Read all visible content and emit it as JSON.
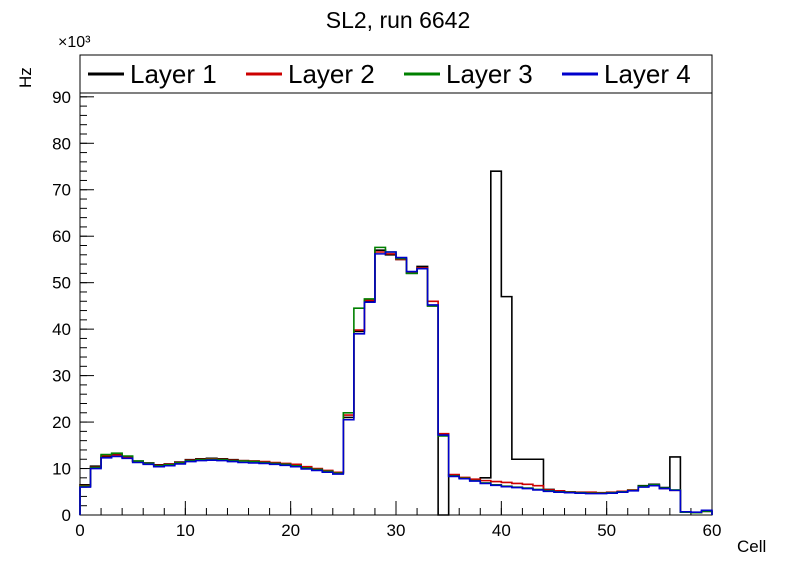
{
  "chart_data": {
    "type": "line",
    "subtype": "step-histogram",
    "title": "SL2, run 6642",
    "xlabel": "Cell",
    "ylabel": "Hz",
    "y_multiplier": "×10³",
    "units": "×10³ Hz",
    "xlim": [
      0,
      60
    ],
    "ylim": [
      0,
      99
    ],
    "x_major_step": 10,
    "x_minor_step": 2,
    "y_major_step": 10,
    "y_minor_step": 2,
    "bin_width": 1,
    "grid": false,
    "legend_position": "top",
    "series": [
      {
        "name": "Layer 1",
        "color": "#000000",
        "values": [
          6.5,
          10.5,
          12.5,
          13.0,
          12.5,
          11.6,
          11.2,
          10.8,
          11.0,
          11.4,
          11.9,
          12.1,
          12.2,
          12.1,
          11.9,
          11.7,
          11.6,
          11.4,
          11.2,
          11.0,
          10.7,
          10.2,
          9.9,
          9.4,
          9.1,
          21.0,
          39.5,
          46.0,
          57.0,
          56.0,
          55.0,
          52.0,
          53.5,
          45.0,
          0.0,
          8.6,
          8.0,
          7.6,
          8.0,
          74.0,
          47.0,
          12.0,
          12.0,
          12.0,
          5.5,
          5.1,
          4.9,
          4.8,
          4.7,
          4.7,
          4.8,
          5.0,
          5.3,
          6.3,
          6.6,
          5.9,
          12.5,
          0.6,
          0.5,
          0.8
        ]
      },
      {
        "name": "Layer 2",
        "color": "#cc0000",
        "values": [
          6.3,
          10.3,
          12.8,
          12.9,
          12.4,
          11.5,
          11.1,
          10.7,
          10.9,
          11.3,
          11.8,
          12.0,
          12.1,
          12.0,
          11.8,
          11.7,
          11.6,
          11.5,
          11.3,
          11.1,
          10.9,
          10.4,
          10.0,
          9.6,
          9.2,
          21.5,
          39.8,
          46.2,
          56.6,
          56.2,
          55.0,
          52.2,
          53.2,
          46.0,
          17.5,
          8.7,
          8.1,
          7.7,
          7.4,
          7.2,
          7.0,
          6.8,
          6.6,
          6.3,
          5.4,
          5.2,
          5.0,
          4.9,
          4.9,
          4.8,
          4.9,
          5.1,
          5.4,
          6.1,
          6.3,
          5.7,
          5.3,
          0.6,
          0.5,
          0.8
        ]
      },
      {
        "name": "Layer 3",
        "color": "#008000",
        "values": [
          6.2,
          10.2,
          13.0,
          13.3,
          12.7,
          11.6,
          11.1,
          10.6,
          10.8,
          11.2,
          11.7,
          11.9,
          12.0,
          11.9,
          11.7,
          11.6,
          11.5,
          11.3,
          11.1,
          10.9,
          10.6,
          10.1,
          9.8,
          9.4,
          9.0,
          22.0,
          44.5,
          46.5,
          57.6,
          56.6,
          55.2,
          52.0,
          53.0,
          45.0,
          17.0,
          8.4,
          7.9,
          7.4,
          6.9,
          6.5,
          6.2,
          6.0,
          5.8,
          5.5,
          5.2,
          5.0,
          4.9,
          4.8,
          4.7,
          4.7,
          4.8,
          5.0,
          5.3,
          6.2,
          6.5,
          5.8,
          5.4,
          0.6,
          0.5,
          0.8
        ]
      },
      {
        "name": "Layer 4",
        "color": "#0000cc",
        "values": [
          6.0,
          10.0,
          12.3,
          12.6,
          12.2,
          11.3,
          10.9,
          10.4,
          10.6,
          11.0,
          11.5,
          11.7,
          11.8,
          11.7,
          11.5,
          11.3,
          11.2,
          11.1,
          10.9,
          10.7,
          10.4,
          9.9,
          9.6,
          9.2,
          8.8,
          20.5,
          39.0,
          45.8,
          56.2,
          56.6,
          55.4,
          52.4,
          53.0,
          45.2,
          17.2,
          8.3,
          7.8,
          7.3,
          6.8,
          6.4,
          6.1,
          5.9,
          5.7,
          5.4,
          5.1,
          4.9,
          4.8,
          4.7,
          4.6,
          4.6,
          4.7,
          4.9,
          5.2,
          6.0,
          6.3,
          5.7,
          5.3,
          0.7,
          0.6,
          1.0
        ]
      }
    ]
  }
}
